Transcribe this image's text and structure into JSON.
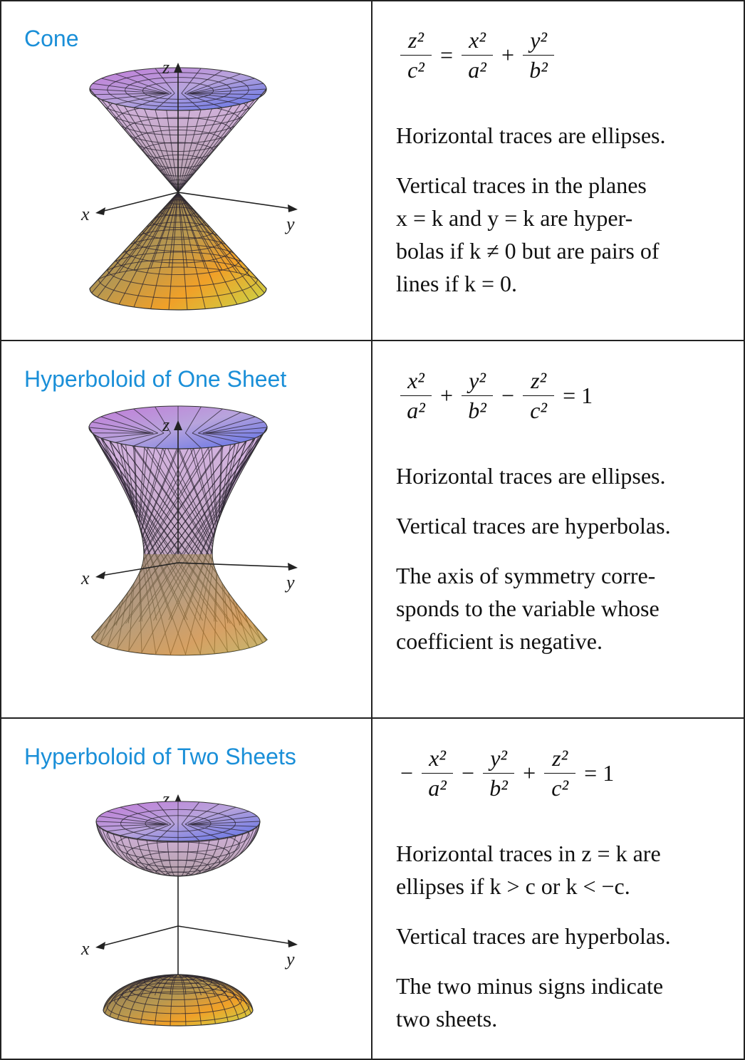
{
  "rows": [
    {
      "title": "Cone",
      "figure": {
        "axes": {
          "x": "x",
          "y": "y",
          "z": "z"
        }
      },
      "equation": [
        {
          "num": "z²",
          "den": "c²"
        },
        {
          "op": "="
        },
        {
          "num": "x²",
          "den": "a²"
        },
        {
          "op": "+"
        },
        {
          "num": "y²",
          "den": "b²"
        }
      ],
      "paragraphs": [
        [
          "Horizontal traces are ellipses."
        ],
        [
          "Vertical traces in the planes",
          "x = k and y = k are hyper-",
          "bolas if k ≠ 0 but are pairs of",
          "lines if k = 0."
        ]
      ]
    },
    {
      "title": "Hyperboloid of One Sheet",
      "figure": {
        "axes": {
          "x": "x",
          "y": "y",
          "z": "z"
        }
      },
      "equation": [
        {
          "num": "x²",
          "den": "a²"
        },
        {
          "op": "+"
        },
        {
          "num": "y²",
          "den": "b²"
        },
        {
          "op": "−"
        },
        {
          "num": "z²",
          "den": "c²"
        },
        {
          "op": "= 1"
        }
      ],
      "paragraphs": [
        [
          "Horizontal traces are ellipses."
        ],
        [
          "Vertical traces are hyperbolas."
        ],
        [
          "The axis of symmetry corre-",
          "sponds to the variable whose",
          "coefficient is negative."
        ]
      ]
    },
    {
      "title": "Hyperboloid of Two Sheets",
      "figure": {
        "axes": {
          "x": "x",
          "y": "y",
          "z": "z"
        }
      },
      "equation": [
        {
          "op": "−"
        },
        {
          "num": "x²",
          "den": "a²"
        },
        {
          "op": "−"
        },
        {
          "num": "y²",
          "den": "b²"
        },
        {
          "op": "+"
        },
        {
          "num": "z²",
          "den": "c²"
        },
        {
          "op": "= 1"
        }
      ],
      "paragraphs": [
        [
          "Horizontal traces in z = k are",
          "ellipses if k > c or k < −c."
        ],
        [
          "Vertical traces are hyperbolas."
        ],
        [
          "The two minus signs indicate",
          "two sheets."
        ]
      ]
    }
  ]
}
